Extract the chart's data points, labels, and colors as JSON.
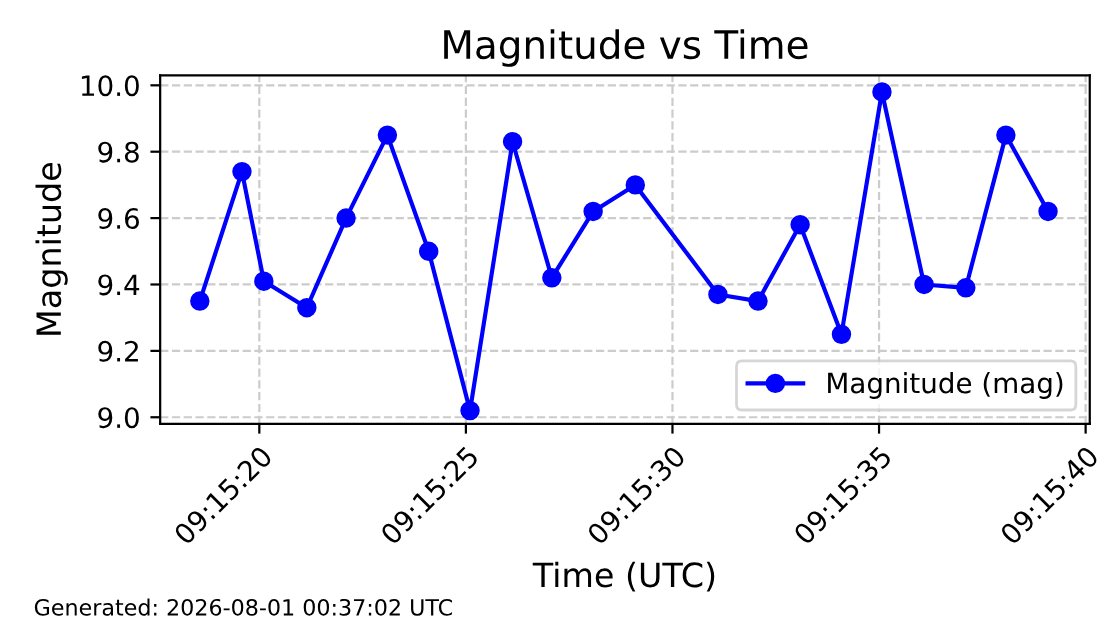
{
  "chart_data": {
    "type": "line",
    "title": "Magnitude vs Time",
    "xlabel": "Time (UTC)",
    "ylabel": "Magnitude",
    "x": [
      "2026-08-01T09:15:18.56",
      "2026-08-01T09:15:19.58",
      "2026-08-01T09:15:20.11",
      "2026-08-01T09:15:21.15",
      "2026-08-01T09:15:22.1",
      "2026-08-01T09:15:23.1",
      "2026-08-01T09:15:24.1",
      "2026-08-01T09:15:25.1",
      "2026-08-01T09:15:26.13",
      "2026-08-01T09:15:27.08",
      "2026-08-01T09:15:28.08",
      "2026-08-01T09:15:29.1",
      "2026-08-01T09:15:31.1",
      "2026-08-01T09:15:32.07",
      "2026-08-01T09:15:33.09",
      "2026-08-01T09:15:34.09",
      "2026-08-01T09:15:35.07",
      "2026-08-01T09:15:36.09",
      "2026-08-01T09:15:37.1",
      "2026-08-01T09:15:38.07",
      "2026-08-01T09:15:39.09"
    ],
    "series": [
      {
        "name": "Magnitude (mag)",
        "color": "#0000ff",
        "values": [
          9.35,
          9.74,
          9.41,
          9.33,
          9.6,
          9.85,
          9.5,
          9.02,
          9.83,
          9.42,
          9.62,
          9.7,
          9.37,
          9.35,
          9.58,
          9.25,
          9.98,
          9.4,
          9.39,
          9.85,
          9.62
        ]
      }
    ],
    "xlim": [
      "2026-08-01T09:15:17.6",
      "2026-08-01T09:15:40.1"
    ],
    "xticks": [
      {
        "value": "2026-08-01T09:15:20",
        "label": "09:15:20"
      },
      {
        "value": "2026-08-01T09:15:25",
        "label": "09:15:25"
      },
      {
        "value": "2026-08-01T09:15:30",
        "label": "09:15:30"
      },
      {
        "value": "2026-08-01T09:15:35",
        "label": "09:15:35"
      },
      {
        "value": "2026-08-01T09:15:40",
        "label": "09:15:40"
      }
    ],
    "ylim": [
      8.98,
      10.03
    ],
    "yticks": [
      {
        "value": 9,
        "label": "9.0"
      },
      9.2,
      9.4,
      9.6,
      9.8,
      {
        "value": 10,
        "label": "10.0"
      }
    ],
    "grid": true,
    "legend": "bottom right",
    "marker": "circle",
    "line_style": "solid",
    "annotations": [
      "Generated: 2026-08-01 00:37:02 UTC"
    ]
  }
}
